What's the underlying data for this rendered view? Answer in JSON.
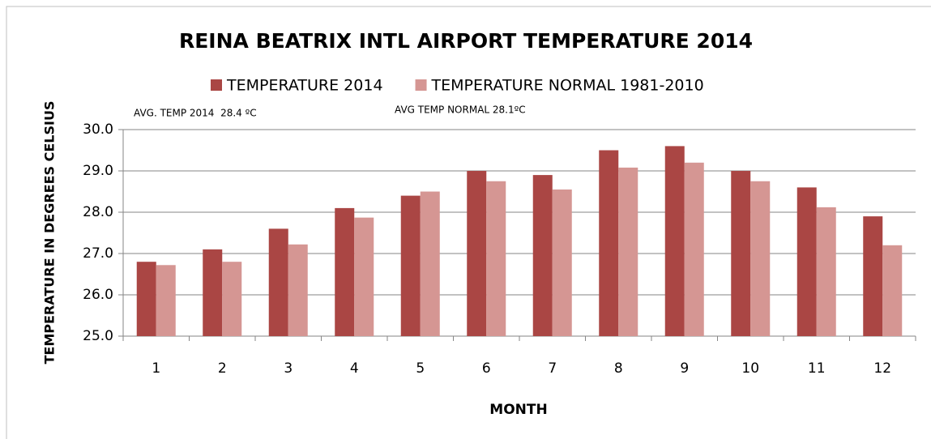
{
  "chart_data": {
    "type": "bar",
    "title": "REINA BEATRIX INTL AIRPORT TEMPERATURE  2014",
    "x_label": "MONTH",
    "y_label": "TEMPERATURE IN DEGREES CELSIUS",
    "annotations": [
      "AVG. TEMP 2014  28.4 ºC",
      "AVG TEMP NORMAL 28.1ºC"
    ],
    "categories": [
      "1",
      "2",
      "3",
      "4",
      "5",
      "6",
      "7",
      "8",
      "9",
      "10",
      "11",
      "12"
    ],
    "series": [
      {
        "name": "TEMPERATURE 2014",
        "color": "#aa4644",
        "values": [
          26.8,
          27.1,
          27.6,
          28.1,
          28.4,
          29.0,
          28.9,
          29.5,
          29.6,
          29.0,
          28.6,
          27.9
        ]
      },
      {
        "name": "TEMPERATURE NORMAL 1981-2010",
        "color": "#d59693",
        "values": [
          26.72,
          26.8,
          27.22,
          27.87,
          28.5,
          28.75,
          28.55,
          29.08,
          29.2,
          28.75,
          28.12,
          27.2
        ]
      }
    ],
    "ylim": [
      25,
      30
    ],
    "yticks": [
      {
        "value": 25,
        "label": "25.0"
      },
      {
        "value": 26,
        "label": "26.0"
      },
      {
        "value": 27,
        "label": "27.0"
      },
      {
        "value": 28,
        "label": "28.0"
      },
      {
        "value": 29,
        "label": "29.0"
      },
      {
        "value": 30,
        "label": "30.0"
      }
    ],
    "grid": true,
    "legend": "top"
  }
}
